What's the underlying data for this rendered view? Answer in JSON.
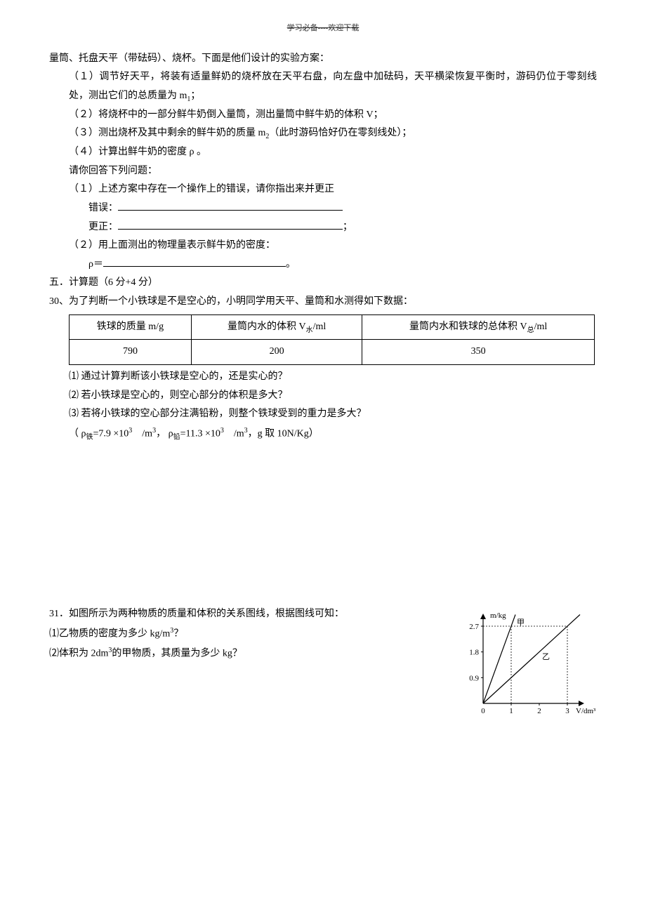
{
  "header": "学习必备----欢迎下载",
  "intro": "量筒、托盘天平（带砝码）、烧杯。下面是他们设计的实验方案：",
  "step1": "（１）调节好天平，将装有适量鲜奶的烧杯放在天平右盘，向左盘中加砝码，天平横梁恢复平衡时，游码仍位于零刻线处，测出它们的总质量为 m",
  "step1_sub": "1",
  "step1_end": "；",
  "step2": "（２）将烧杯中的一部分鲜牛奶倒入量筒，测出量筒中鲜牛奶的体积 V；",
  "step3": "（３）测出烧杯及其中剩余的鲜牛奶的质量 m",
  "step3_sub": "2",
  "step3_end": "（此时游码恰好仍在零刻线处）；",
  "step4": "（４）计算出鲜牛奶的密度 ρ 。",
  "ask": "请你回答下列问题：",
  "q1": "（１）上述方案中存在一个操作上的错误，请你指出来并更正",
  "err_label": "错误：",
  "fix_label": "更正：",
  "fix_end": "；",
  "q2": "（２）用上面测出的物理量表示鲜牛奶的密度：",
  "rho_label": "ρ＝",
  "rho_end": "。",
  "section5": "五．计算题（6 分+4 分）",
  "p30": "30、为了判断一个小铁球是不是空心的，小明同学用天平、量筒和水测得如下数据：",
  "table": {
    "headers": [
      "铁球的质量 m/g",
      "量筒内水的体积 V",
      "量筒内水和铁球的总体积 V"
    ],
    "h2_sub": "水",
    "h2_unit": "/ml",
    "h3_sub": "总",
    "h3_unit": "/ml",
    "row": [
      "790",
      "200",
      "350"
    ]
  },
  "p30_1": "⑴ 通过计算判断该小铁球是空心的，还是实心的？",
  "p30_2": "⑵ 若小铁球是空心的，则空心部分的体积是多大？",
  "p30_3": "⑶ 若将小铁球的空心部分注满铅粉，则整个铁球受到的重力是多大？",
  "p30_note": "（ ρ",
  "p30_fe": "铁",
  "p30_fe_val": "=7.9 ×10",
  "p30_exp": "3",
  "p30_unit1": "　/m",
  "p30_unit_exp": "3",
  "p30_sep": "， ρ",
  "p30_pb": "铅",
  "p30_pb_val": "=11.3 ×10",
  "p30_unit2": "　/m",
  "p30_g": "，g 取 10N/Kg）",
  "p31": "31．如图所示为两种物质的质量和体积的关系图线，根据图线可知：",
  "p31_1": "⑴乙物质的密度为多少 kg/m",
  "p31_1_end": "？",
  "p31_2": "⑵体积为 2dm",
  "p31_2_end": "的甲物质，其质量为多少 kg？",
  "chart": {
    "type": "line",
    "y_label": "m/kg",
    "x_label": "V/dm³",
    "y_ticks": [
      "0.9",
      "1.8",
      "2.7"
    ],
    "x_ticks": [
      "0",
      "1",
      "2",
      "3"
    ],
    "series": [
      {
        "name": "甲",
        "label": "甲",
        "points": [
          [
            0,
            0
          ],
          [
            1,
            2.7
          ]
        ],
        "dash_to": [
          3,
          2.7
        ],
        "color": "#000"
      },
      {
        "name": "乙",
        "label": "乙",
        "points": [
          [
            0,
            0
          ],
          [
            3,
            2.7
          ]
        ],
        "color": "#000"
      }
    ],
    "axis_color": "#000",
    "grid_dash": "2,2",
    "background": "#ffffff",
    "line_width": 1.2,
    "font_size": 11
  }
}
